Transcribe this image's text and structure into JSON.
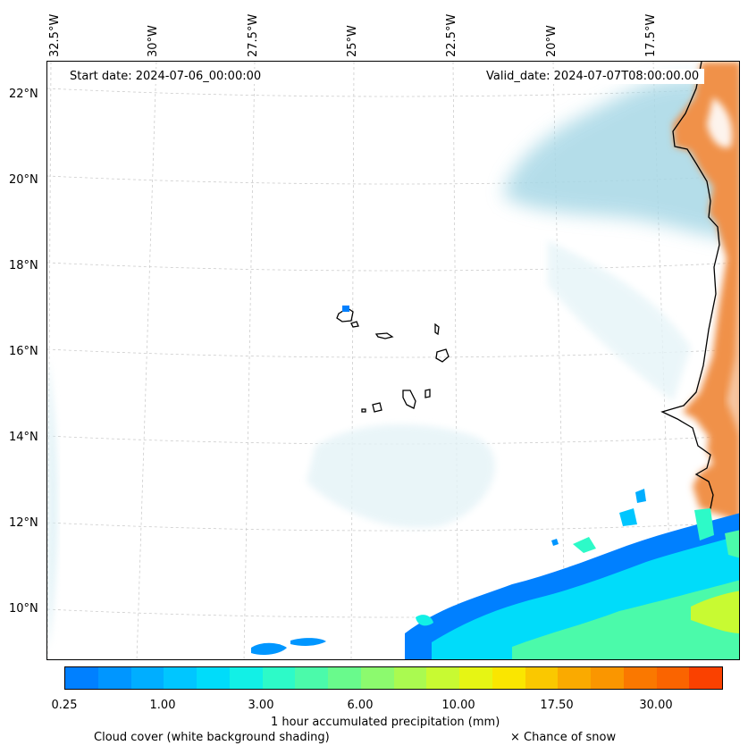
{
  "map": {
    "longitude_labels": [
      "32.5°W",
      "30°W",
      "27.5°W",
      "25°W",
      "22.5°W",
      "20°W",
      "17.5°W"
    ],
    "latitude_labels": [
      "22°N",
      "20°N",
      "18°N",
      "16°N",
      "14°N",
      "12°N",
      "10°N"
    ],
    "start_date": "Start date: 2024-07-06_00:00:00",
    "valid_date": "Valid_date: 2024-07-07T08:00:00.00",
    "land_color": "#f0914a",
    "cloud_color": "#a8d8e6",
    "coastline_color": "#000000"
  },
  "colorbar": {
    "colors": [
      "#0080ff",
      "#0096ff",
      "#00aeff",
      "#00c6ff",
      "#00dcfa",
      "#12f0e6",
      "#2dfac8",
      "#4bfaaa",
      "#69fa8c",
      "#8cfa6e",
      "#aafa50",
      "#c8fa32",
      "#e6f514",
      "#fae600",
      "#fac800",
      "#faaa00",
      "#fa9600",
      "#fa7800",
      "#fa6400",
      "#fa4100"
    ],
    "tick_labels": [
      "0.25",
      "1.00",
      "3.00",
      "6.00",
      "10.00",
      "17.50",
      "30.00"
    ],
    "label": "1 hour accumulated precipitation (mm)"
  },
  "footer": {
    "cloud_cover_note": "Cloud cover (white background shading)",
    "snow_note": "× Chance of snow"
  }
}
